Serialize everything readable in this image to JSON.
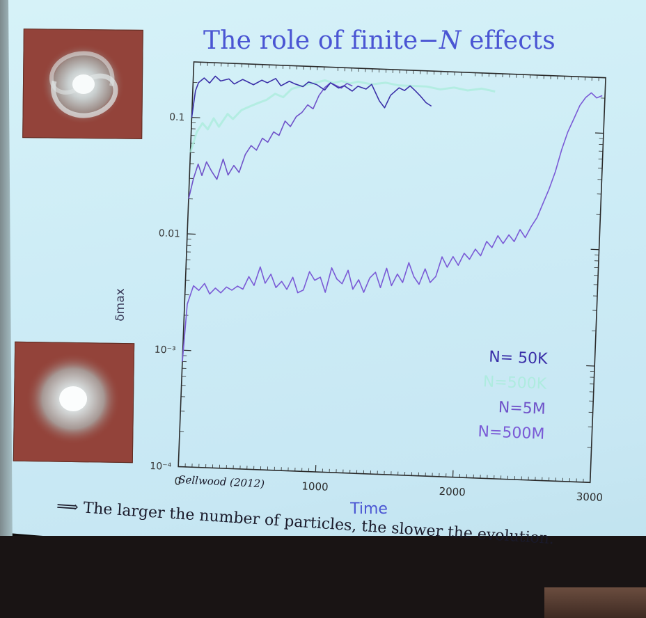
{
  "slide": {
    "title_prefix": "The role of finite−",
    "title_symbol": "N",
    "title_suffix": " effects",
    "conclusion": "⟹ The larger the number of particles, the slower the evolution.",
    "citation": "Sellwood (2012)"
  },
  "images": [
    {
      "depicts": "spiral-galaxy-photo"
    },
    {
      "depicts": "featureless-galaxy-photo"
    }
  ],
  "chart_data": {
    "type": "line",
    "title": "",
    "xlabel": "Time",
    "ylabel": "δmax",
    "xlim": [
      0,
      3000
    ],
    "ylim": [
      0.0001,
      0.3
    ],
    "yscale": "log",
    "x_ticks": [
      "0",
      "1000",
      "2000",
      "3000"
    ],
    "y_ticks": [
      "10⁻⁴",
      "10⁻³",
      "0.01",
      "0.1"
    ],
    "y_tick_values": [
      0.0001,
      0.001,
      0.01,
      0.1
    ],
    "legend_position": "bottom-right",
    "series": [
      {
        "name": "N= 50K",
        "color": "#3a2fa8",
        "x": [
          0,
          20,
          40,
          80,
          120,
          160,
          200,
          260,
          300,
          360,
          400,
          440,
          500,
          540,
          600,
          640,
          700,
          740,
          800,
          840,
          900,
          960,
          1000,
          1060,
          1100,
          1160,
          1200,
          1260,
          1300,
          1360,
          1400,
          1440,
          1500,
          1540,
          1580,
          1620,
          1660,
          1700,
          1740
        ],
        "y": [
          0.1,
          0.17,
          0.2,
          0.22,
          0.2,
          0.23,
          0.21,
          0.22,
          0.2,
          0.22,
          0.21,
          0.2,
          0.22,
          0.21,
          0.23,
          0.2,
          0.22,
          0.21,
          0.2,
          0.22,
          0.21,
          0.19,
          0.22,
          0.2,
          0.21,
          0.19,
          0.21,
          0.2,
          0.22,
          0.16,
          0.14,
          0.18,
          0.21,
          0.2,
          0.22,
          0.2,
          0.18,
          0.16,
          0.15
        ]
      },
      {
        "name": "N=500K",
        "color": "#a6ecd8",
        "x": [
          0,
          40,
          80,
          120,
          160,
          200,
          260,
          300,
          360,
          420,
          480,
          540,
          600,
          660,
          720,
          780,
          840,
          900,
          960,
          1020,
          1080,
          1140,
          1200,
          1300,
          1400,
          1500,
          1600,
          1700,
          1800,
          1900,
          2000,
          2100,
          2200
        ],
        "y": [
          0.05,
          0.075,
          0.09,
          0.08,
          0.1,
          0.085,
          0.11,
          0.1,
          0.12,
          0.13,
          0.14,
          0.15,
          0.17,
          0.16,
          0.19,
          0.2,
          0.21,
          0.22,
          0.23,
          0.22,
          0.23,
          0.22,
          0.23,
          0.22,
          0.23,
          0.22,
          0.22,
          0.22,
          0.21,
          0.22,
          0.21,
          0.22,
          0.21
        ]
      },
      {
        "name": "N=5M",
        "color": "#6f52c9",
        "x": [
          0,
          30,
          60,
          90,
          120,
          160,
          200,
          240,
          280,
          320,
          360,
          400,
          440,
          480,
          520,
          560,
          600,
          640,
          680,
          720,
          760,
          800,
          840,
          880,
          920,
          960,
          1000,
          1040,
          1080,
          1120,
          1160
        ],
        "y": [
          0.02,
          0.03,
          0.04,
          0.032,
          0.042,
          0.035,
          0.03,
          0.045,
          0.033,
          0.04,
          0.035,
          0.05,
          0.06,
          0.055,
          0.07,
          0.065,
          0.08,
          0.075,
          0.1,
          0.09,
          0.11,
          0.12,
          0.14,
          0.13,
          0.17,
          0.2,
          0.22,
          0.21,
          0.2,
          0.22,
          0.21
        ]
      },
      {
        "name": "N=500M",
        "color": "#7a5ad6",
        "x": [
          0,
          20,
          60,
          100,
          140,
          180,
          220,
          260,
          300,
          340,
          380,
          420,
          460,
          500,
          540,
          580,
          620,
          660,
          700,
          740,
          780,
          820,
          860,
          900,
          940,
          980,
          1020,
          1060,
          1100,
          1140,
          1180,
          1220,
          1260,
          1300,
          1340,
          1380,
          1420,
          1460,
          1500,
          1540,
          1580,
          1620,
          1660,
          1700,
          1740,
          1780,
          1820,
          1860,
          1900,
          1940,
          1980,
          2020,
          2060,
          2100,
          2140,
          2180,
          2220,
          2260,
          2300,
          2340,
          2380,
          2420,
          2460,
          2500,
          2540,
          2580,
          2620,
          2660,
          2700,
          2740,
          2780,
          2820,
          2860,
          2900,
          2940,
          2980
        ],
        "y": [
          0.0008,
          0.0025,
          0.0036,
          0.0033,
          0.0038,
          0.0031,
          0.0035,
          0.0032,
          0.0036,
          0.0034,
          0.0037,
          0.0035,
          0.0045,
          0.0038,
          0.0055,
          0.004,
          0.0048,
          0.0037,
          0.0042,
          0.0036,
          0.0046,
          0.0034,
          0.0036,
          0.0052,
          0.0044,
          0.0047,
          0.0035,
          0.0057,
          0.0046,
          0.0042,
          0.0055,
          0.0038,
          0.0046,
          0.0036,
          0.0048,
          0.0054,
          0.004,
          0.0059,
          0.0042,
          0.0053,
          0.0045,
          0.0067,
          0.0051,
          0.0044,
          0.006,
          0.0046,
          0.0052,
          0.0077,
          0.0063,
          0.0078,
          0.0066,
          0.0084,
          0.0075,
          0.0092,
          0.0081,
          0.0108,
          0.0096,
          0.0122,
          0.0105,
          0.0125,
          0.011,
          0.014,
          0.012,
          0.015,
          0.018,
          0.024,
          0.032,
          0.045,
          0.07,
          0.1,
          0.13,
          0.17,
          0.2,
          0.22,
          0.2,
          0.21
        ]
      }
    ]
  }
}
